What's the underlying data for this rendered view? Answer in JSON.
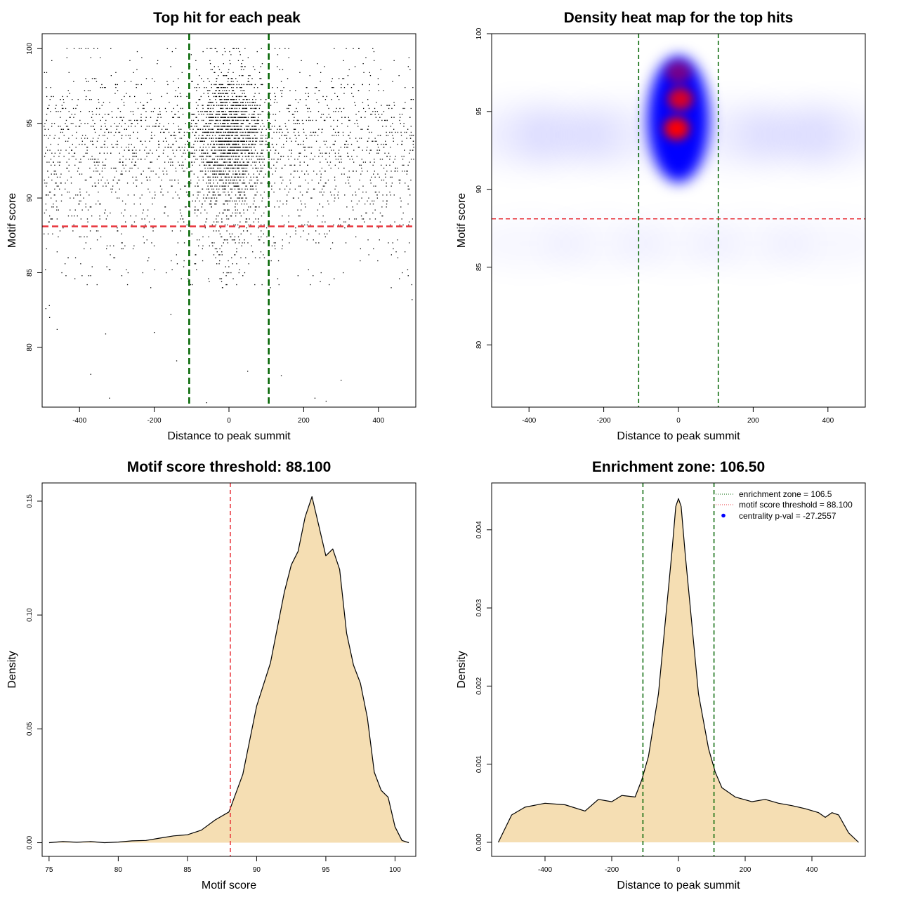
{
  "figure": {
    "panels": [
      {
        "title": "Top hit for each peak",
        "xlabel": "Distance to peak summit",
        "ylabel": "Motif score"
      },
      {
        "title": "Density heat map for the top hits",
        "xlabel": "Distance to peak summit",
        "ylabel": "Motif score"
      },
      {
        "title": "Motif score threshold: 88.100",
        "xlabel": "Motif score",
        "ylabel": "Density"
      },
      {
        "title": "Enrichment zone: 106.50",
        "xlabel": "Distance to peak summit",
        "ylabel": "Density"
      }
    ],
    "legend": {
      "items": [
        {
          "label": "enrichment zone = 106.5",
          "color": "#006400",
          "style": "dotted-line"
        },
        {
          "label": "motif score threshold = 88.100",
          "color": "#e8333a",
          "style": "dotted-line"
        },
        {
          "label": "centrality p-val = -27.2557",
          "color": "#0000ff",
          "style": "point"
        }
      ],
      "placement": "top-right"
    }
  },
  "chart_data": [
    {
      "type": "scatter",
      "title": "Top hit for each peak",
      "xlabel": "Distance to peak summit",
      "ylabel": "Motif score",
      "xlim": [
        -500,
        500
      ],
      "ylim": [
        76,
        101
      ],
      "xticks": [
        "-400",
        "-200",
        "0",
        "200",
        "400"
      ],
      "yticks": [
        "80",
        "85",
        "90",
        "95",
        "100"
      ],
      "n_points_approx": 4000,
      "vlines": [
        -106.5,
        106.5
      ],
      "hline": 88.1,
      "sample_outliers": [
        [
          -320,
          76.6
        ],
        [
          -370,
          78.2
        ],
        [
          -60,
          76.3
        ],
        [
          230,
          76.6
        ],
        [
          260,
          76.4
        ],
        [
          300,
          77.8
        ],
        [
          50,
          78.4
        ],
        [
          140,
          78.1
        ],
        [
          -140,
          79.1
        ],
        [
          -330,
          80.9
        ],
        [
          -200,
          81.0
        ],
        [
          -460,
          81.2
        ],
        [
          -480,
          82.0
        ],
        [
          -490,
          82.6
        ]
      ]
    },
    {
      "type": "heatmap",
      "title": "Density heat map for the top hits",
      "xlabel": "Distance to peak summit",
      "ylabel": "Motif score",
      "xlim": [
        -500,
        500
      ],
      "ylim": [
        76,
        100
      ],
      "xticks": [
        "-400",
        "-200",
        "0",
        "200",
        "400"
      ],
      "yticks": [
        "80",
        "85",
        "90",
        "95",
        "100"
      ],
      "colors": [
        "#ffffff",
        "#0000ff",
        "#ff0000"
      ],
      "peaks": [
        {
          "x": -5,
          "y": 93.9,
          "intensity": 1.0
        },
        {
          "x": 5,
          "y": 95.8,
          "intensity": 0.85
        },
        {
          "x": 0,
          "y": 97.5,
          "intensity": 0.45
        }
      ],
      "vlines": [
        -106.5,
        106.5
      ],
      "hline": 88.1
    },
    {
      "type": "area",
      "title": "Motif score threshold: 88.100",
      "xlabel": "Motif score",
      "ylabel": "Density",
      "xlim": [
        74.5,
        101.5
      ],
      "ylim": [
        -0.006,
        0.158
      ],
      "xticks": [
        "75",
        "80",
        "85",
        "90",
        "95",
        "100"
      ],
      "yticks": [
        "0.00",
        "0.05",
        "0.10",
        "0.15"
      ],
      "fill": "#f5deb3",
      "vline": 88.1,
      "x": [
        75,
        76,
        77,
        78,
        79,
        80,
        81,
        82,
        83,
        84,
        85,
        86,
        87,
        88,
        89,
        90,
        91,
        92,
        92.5,
        93,
        93.5,
        94,
        94.5,
        95,
        95.5,
        96,
        96.5,
        97,
        97.5,
        98,
        98.5,
        99,
        99.5,
        100,
        100.5,
        101
      ],
      "y": [
        0.0,
        0.0005,
        0.0002,
        0.0005,
        0.0,
        0.0003,
        0.0008,
        0.001,
        0.002,
        0.003,
        0.0035,
        0.0055,
        0.01,
        0.0135,
        0.03,
        0.06,
        0.079,
        0.11,
        0.122,
        0.128,
        0.143,
        0.152,
        0.139,
        0.126,
        0.129,
        0.12,
        0.092,
        0.078,
        0.07,
        0.055,
        0.031,
        0.023,
        0.02,
        0.007,
        0.001,
        0.0
      ]
    },
    {
      "type": "area",
      "title": "Enrichment zone: 106.50",
      "xlabel": "Distance to peak summit",
      "ylabel": "Density",
      "xlim": [
        -560,
        560
      ],
      "ylim": [
        -0.00018,
        0.0046
      ],
      "xticks": [
        "-400",
        "-200",
        "0",
        "200",
        "400"
      ],
      "yticks": [
        "0.000",
        "0.001",
        "0.002",
        "0.003",
        "0.004"
      ],
      "fill": "#f5deb3",
      "vlines": [
        -106.5,
        106.5
      ],
      "x": [
        -540,
        -500,
        -460,
        -400,
        -340,
        -280,
        -240,
        -200,
        -170,
        -130,
        -110,
        -90,
        -60,
        -40,
        -20,
        -8,
        0,
        8,
        20,
        40,
        60,
        90,
        110,
        130,
        170,
        220,
        260,
        300,
        340,
        380,
        420,
        440,
        460,
        480,
        510,
        540
      ],
      "y": [
        0.0,
        0.00035,
        0.00045,
        0.0005,
        0.00048,
        0.0004,
        0.00055,
        0.00052,
        0.0006,
        0.00058,
        0.0008,
        0.0011,
        0.0019,
        0.0028,
        0.0037,
        0.0043,
        0.0044,
        0.0043,
        0.0037,
        0.0028,
        0.0019,
        0.0012,
        0.0009,
        0.0007,
        0.00058,
        0.00052,
        0.00055,
        0.0005,
        0.00047,
        0.00043,
        0.00038,
        0.00032,
        0.00038,
        0.00035,
        0.00012,
        0.0
      ]
    }
  ]
}
